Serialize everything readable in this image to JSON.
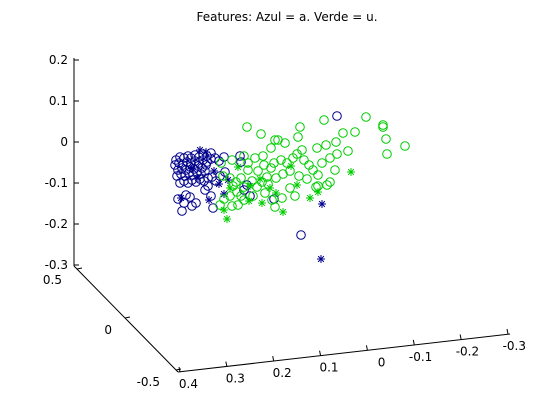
{
  "chart_data": {
    "type": "scatter",
    "projection": "3d",
    "title": "Features: Azul = a. Verde = u.",
    "xlabel": "",
    "ylabel": "",
    "zlabel": "",
    "grid": false,
    "legend": "none",
    "axes": {
      "x": {
        "ticks": [
          "0.4",
          "0.3",
          "0.2",
          "0.1",
          "0",
          "-0.1",
          "-0.2",
          "-0.3"
        ]
      },
      "y": {
        "ticks": [
          "-0.5",
          "0",
          "0.5"
        ]
      },
      "z": {
        "ticks": [
          "0.2",
          "0.1",
          "0",
          "-0.1",
          "-0.2",
          "-0.3"
        ],
        "range": [
          -0.3,
          0.2
        ]
      }
    },
    "series": [
      {
        "marker": "o",
        "color": "#00008b",
        "points": [
          [
            176,
            160
          ],
          [
            180,
            157
          ],
          [
            184,
            158
          ],
          [
            188,
            156
          ],
          [
            191,
            158
          ],
          [
            195,
            155
          ],
          [
            199,
            157
          ],
          [
            203,
            154
          ],
          [
            207,
            156
          ],
          [
            211,
            153
          ],
          [
            175,
            165
          ],
          [
            179,
            163
          ],
          [
            183,
            165
          ],
          [
            187,
            162
          ],
          [
            191,
            164
          ],
          [
            195,
            161
          ],
          [
            199,
            163
          ],
          [
            203,
            160
          ],
          [
            207,
            162
          ],
          [
            211,
            159
          ],
          [
            178,
            170
          ],
          [
            182,
            168
          ],
          [
            186,
            170
          ],
          [
            190,
            167
          ],
          [
            194,
            169
          ],
          [
            198,
            166
          ],
          [
            202,
            168
          ],
          [
            206,
            165
          ],
          [
            215,
            158
          ],
          [
            219,
            161
          ],
          [
            177,
            176
          ],
          [
            181,
            174
          ],
          [
            185,
            176
          ],
          [
            189,
            173
          ],
          [
            193,
            175
          ],
          [
            197,
            172
          ],
          [
            201,
            174
          ],
          [
            205,
            171
          ],
          [
            180,
            183
          ],
          [
            184,
            181
          ],
          [
            188,
            183
          ],
          [
            192,
            180
          ],
          [
            196,
            182
          ],
          [
            200,
            179
          ],
          [
            204,
            181
          ],
          [
            208,
            178
          ],
          [
            212,
            177
          ],
          [
            216,
            181
          ],
          [
            220,
            176
          ],
          [
            224,
            157
          ],
          [
            178,
            199
          ],
          [
            184,
            203
          ],
          [
            190,
            197
          ],
          [
            182,
            211
          ],
          [
            196,
            203
          ],
          [
            205,
            190
          ],
          [
            211,
            196
          ],
          [
            213,
            208
          ],
          [
            240,
            156
          ],
          [
            241,
            162
          ],
          [
            247,
            185
          ],
          [
            274,
            199
          ],
          [
            301,
            235
          ],
          [
            337,
            116
          ],
          [
            208,
            186
          ],
          [
            225,
            172
          ],
          [
            244,
            190
          ],
          [
            250,
            196
          ],
          [
            186,
            195
          ],
          [
            192,
            206
          ]
        ]
      },
      {
        "marker": "*",
        "color": "#00008b",
        "points": [
          [
            200,
            150
          ],
          [
            206,
            152
          ],
          [
            192,
            168
          ],
          [
            198,
            178
          ],
          [
            214,
            171
          ],
          [
            219,
            184
          ],
          [
            209,
            200
          ],
          [
            228,
            180
          ],
          [
            181,
            198
          ],
          [
            224,
            194
          ],
          [
            322,
            204
          ],
          [
            321,
            259
          ]
        ]
      },
      {
        "marker": "o",
        "color": "#00cc00",
        "points": [
          [
            247,
            127
          ],
          [
            261,
            134
          ],
          [
            275,
            140
          ],
          [
            300,
            127
          ],
          [
            324,
            120
          ],
          [
            336,
            142
          ],
          [
            343,
            133
          ],
          [
            355,
            132
          ],
          [
            366,
            117
          ],
          [
            383,
            125
          ],
          [
            383,
            127
          ],
          [
            386,
            139
          ],
          [
            387,
            154
          ],
          [
            405,
            146
          ],
          [
            348,
            151
          ],
          [
            326,
            145
          ],
          [
            317,
            148
          ],
          [
            298,
            137
          ],
          [
            285,
            143
          ],
          [
            278,
            140
          ],
          [
            271,
            148
          ],
          [
            263,
            156
          ],
          [
            255,
            158
          ],
          [
            248,
            163
          ],
          [
            244,
            156
          ],
          [
            232,
            160
          ],
          [
            221,
            163
          ],
          [
            223,
            176
          ],
          [
            230,
            178
          ],
          [
            236,
            182
          ],
          [
            241,
            178
          ],
          [
            244,
            187
          ],
          [
            237,
            192
          ],
          [
            230,
            196
          ],
          [
            220,
            205
          ],
          [
            233,
            186
          ],
          [
            248,
            170
          ],
          [
            252,
            181
          ],
          [
            257,
            187
          ],
          [
            262,
            182
          ],
          [
            267,
            177
          ],
          [
            271,
            168
          ],
          [
            274,
            163
          ],
          [
            281,
            160
          ],
          [
            287,
            163
          ],
          [
            293,
            158
          ],
          [
            297,
            154
          ],
          [
            302,
            150
          ],
          [
            304,
            160
          ],
          [
            309,
            165
          ],
          [
            313,
            170
          ],
          [
            318,
            175
          ],
          [
            322,
            163
          ],
          [
            330,
            158
          ],
          [
            335,
            170
          ],
          [
            327,
            185
          ],
          [
            316,
            187
          ],
          [
            307,
            179
          ],
          [
            299,
            176
          ],
          [
            290,
            171
          ],
          [
            283,
            174
          ],
          [
            276,
            178
          ],
          [
            268,
            184
          ],
          [
            265,
            193
          ],
          [
            272,
            200
          ],
          [
            275,
            207
          ],
          [
            282,
            198
          ],
          [
            290,
            188
          ],
          [
            258,
            171
          ],
          [
            264,
            165
          ],
          [
            318,
            186
          ],
          [
            330,
            182
          ],
          [
            337,
            154
          ],
          [
            295,
            196
          ],
          [
            253,
            196
          ],
          [
            244,
            200
          ],
          [
            238,
            205
          ],
          [
            232,
            206
          ],
          [
            224,
            199
          ],
          [
            241,
            196
          ]
        ]
      },
      {
        "marker": "*",
        "color": "#00cc00",
        "points": [
          [
            351,
            172
          ],
          [
            227,
            219
          ],
          [
            283,
            212
          ],
          [
            249,
            201
          ],
          [
            260,
            179
          ],
          [
            238,
            167
          ],
          [
            270,
            188
          ],
          [
            291,
            166
          ],
          [
            318,
            192
          ],
          [
            310,
            198
          ],
          [
            297,
            185
          ],
          [
            276,
            193
          ],
          [
            262,
            203
          ],
          [
            230,
            188
          ],
          [
            224,
            210
          ],
          [
            250,
            186
          ]
        ]
      }
    ]
  }
}
